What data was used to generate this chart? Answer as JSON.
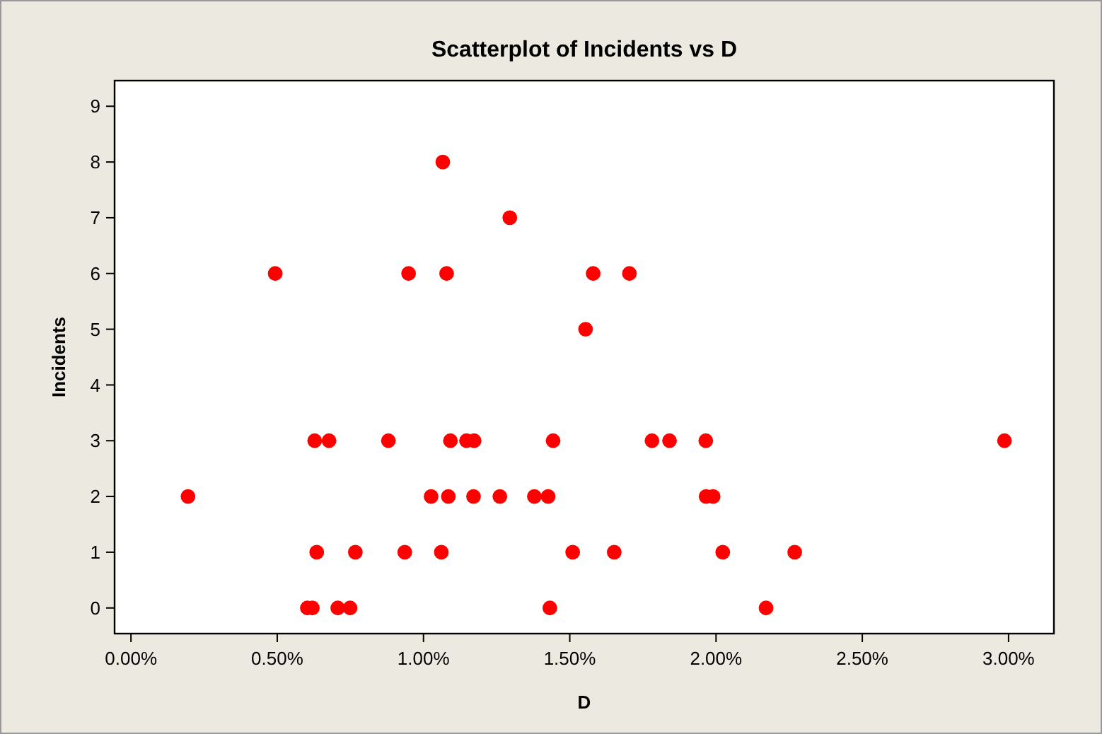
{
  "chart_data": {
    "type": "scatter",
    "title": "Scatterplot of Incidents vs D",
    "xlabel": "D",
    "ylabel": "Incidents",
    "x": [
      0.195,
      0.493,
      0.628,
      0.677,
      0.635,
      0.767,
      0.603,
      0.62,
      0.707,
      0.749,
      0.88,
      0.949,
      0.936,
      1.066,
      1.079,
      1.026,
      1.085,
      1.092,
      1.061,
      1.147,
      1.173,
      1.171,
      1.295,
      1.261,
      1.379,
      1.426,
      1.443,
      1.432,
      1.51,
      1.554,
      1.58,
      1.704,
      1.781,
      1.841,
      1.965,
      1.966,
      1.99,
      2.023,
      1.652,
      2.269,
      2.171,
      2.986
    ],
    "series": [
      {
        "color": "#ff0000",
        "values": [
          2,
          6,
          3,
          3,
          1,
          1,
          0,
          0,
          0,
          0,
          3,
          6,
          1,
          8,
          6,
          2,
          2,
          3,
          1,
          3,
          3,
          2,
          7,
          2,
          2,
          2,
          3,
          0,
          1,
          5,
          6,
          6,
          3,
          3,
          3,
          2,
          2,
          1,
          1,
          1,
          0,
          3
        ]
      }
    ],
    "xlim": [
      -0.056,
      3.155
    ],
    "ylim": [
      -0.46,
      9.46
    ],
    "xticks": [
      {
        "value": 0,
        "label": "0.00%"
      },
      {
        "value": 0.5,
        "label": "0.50%"
      },
      {
        "value": 1,
        "label": "1.00%"
      },
      {
        "value": 1.5,
        "label": "1.50%"
      },
      {
        "value": 2,
        "label": "2.00%"
      },
      {
        "value": 2.5,
        "label": "2.50%"
      },
      {
        "value": 3,
        "label": "3.00%"
      }
    ],
    "yticks": [
      0,
      1,
      2,
      3,
      4,
      5,
      6,
      7,
      8,
      9
    ],
    "marker": "circle",
    "grid": false
  }
}
